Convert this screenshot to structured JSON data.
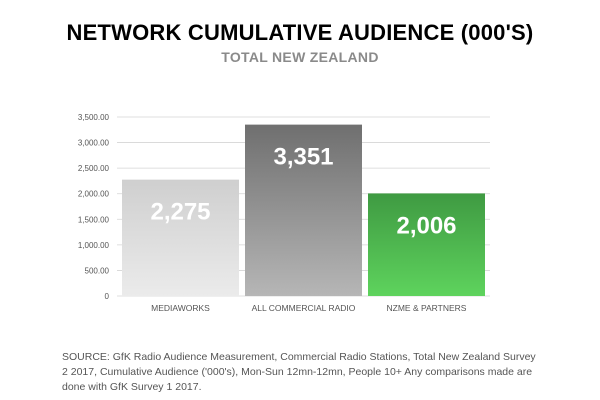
{
  "chart_data": {
    "type": "bar",
    "title": "NETWORK CUMULATIVE AUDIENCE (000'S)",
    "subtitle": "TOTAL NEW ZEALAND",
    "categories": [
      "MEDIAWORKS",
      "ALL COMMERCIAL RADIO",
      "NZME & PARTNERS"
    ],
    "values": [
      2275,
      3351,
      2006
    ],
    "data_labels": [
      "2,275",
      "3,351",
      "2,006"
    ],
    "ylim": [
      0,
      3500
    ],
    "yticks": [
      0,
      500,
      1000,
      1500,
      2000,
      2500,
      3000,
      3500
    ],
    "ytick_labels": [
      "0",
      "500.00",
      "1,000.00",
      "1,500.00",
      "2,000.00",
      "2,500.00",
      "3,000.00",
      "3,500.00"
    ],
    "grid": true,
    "bar_gradients": [
      {
        "top": "#cfcfcf",
        "bottom": "#ebebeb"
      },
      {
        "top": "#6f6f6f",
        "bottom": "#b6b6b6"
      },
      {
        "top": "#3f9a42",
        "bottom": "#5ed35d"
      }
    ]
  },
  "source": "SOURCE:  GfK Radio Audience Measurement, Commercial Radio Stations, Total New Zealand Survey 2 2017, Cumulative Audience ('000's), Mon-Sun 12mn-12mn, People 10+ Any comparisons made are done with GfK Survey 1 2017."
}
